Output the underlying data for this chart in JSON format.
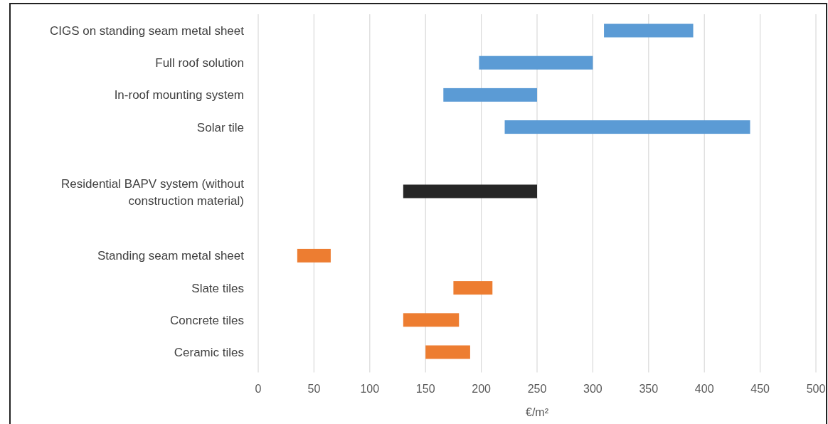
{
  "chart_data": {
    "type": "bar",
    "orientation": "horizontal",
    "xlabel": "€/m²",
    "categories": [
      "CIGS on standing seam metal sheet",
      "Full roof solution",
      "In-roof mounting system",
      "Solar tile",
      null,
      "Residential BAPV system (without construction material)",
      null,
      "Standing seam metal sheet",
      "Slate tiles",
      "Concrete tiles",
      "Ceramic tiles"
    ],
    "base": [
      310,
      198,
      166,
      221,
      null,
      130,
      null,
      35,
      175,
      130,
      150
    ],
    "values": [
      80,
      102,
      84,
      220,
      null,
      120,
      null,
      30,
      35,
      50,
      40
    ],
    "colors": [
      "#5b9bd5",
      "#5b9bd5",
      "#5b9bd5",
      "#5b9bd5",
      null,
      "#262626",
      null,
      "#ed7d31",
      "#ed7d31",
      "#ed7d31",
      "#ed7d31"
    ],
    "xlim": [
      0,
      500
    ],
    "xticks": [
      0,
      50,
      100,
      150,
      200,
      250,
      300,
      350,
      400,
      450,
      500
    ],
    "grid": "x"
  }
}
